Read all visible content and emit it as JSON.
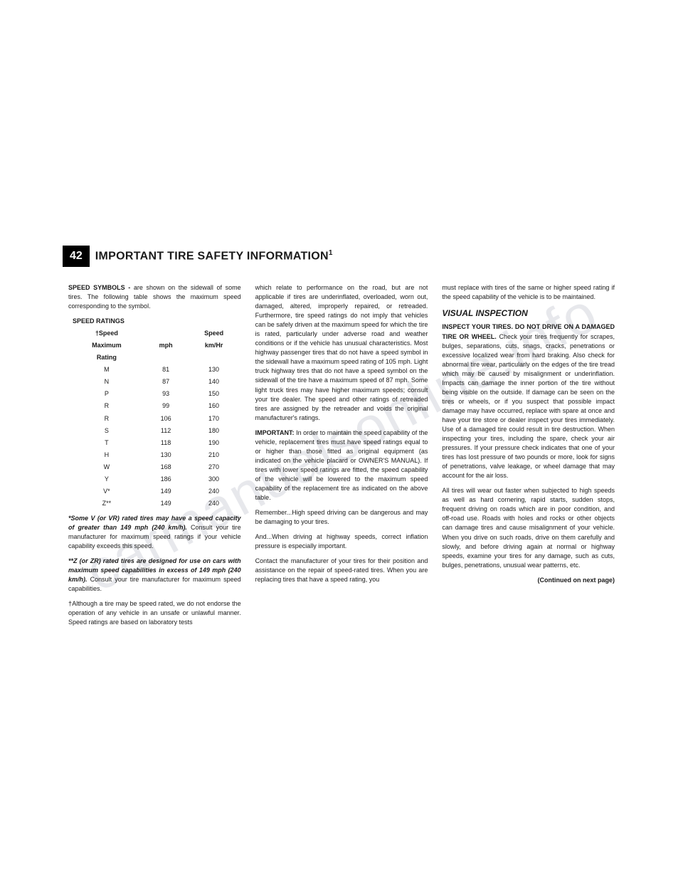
{
  "watermark": "carmanualsonline.info",
  "page_number": "42",
  "header_title": "IMPORTANT TIRE SAFETY INFORMATION",
  "header_sup": "1",
  "col1": {
    "p1_bold": "SPEED SYMBOLS - ",
    "p1_rest": "are shown on the sidewall of some tires. The following table shows the maximum speed corresponding to the symbol.",
    "table_title": "SPEED RATINGS",
    "table": {
      "headers": {
        "c1a": "†Speed",
        "c1b": "Maximum",
        "c1c": "Rating",
        "c2": "mph",
        "c3_top": "Speed",
        "c3": "km/Hr"
      },
      "rows": [
        {
          "r": "M",
          "mph": "81",
          "kmh": "130"
        },
        {
          "r": "N",
          "mph": "87",
          "kmh": "140"
        },
        {
          "r": "P",
          "mph": "93",
          "kmh": "150"
        },
        {
          "r": "R",
          "mph": "99",
          "kmh": "160"
        },
        {
          "r": "R",
          "mph": "106",
          "kmh": "170"
        },
        {
          "r": "S",
          "mph": "112",
          "kmh": "180"
        },
        {
          "r": "T",
          "mph": "118",
          "kmh": "190"
        },
        {
          "r": "H",
          "mph": "130",
          "kmh": "210"
        },
        {
          "r": "W",
          "mph": "168",
          "kmh": "270"
        },
        {
          "r": "Y",
          "mph": "186",
          "kmh": "300"
        },
        {
          "r": "V*",
          "mph": "149",
          "kmh": "240"
        },
        {
          "r": "Z**",
          "mph": "149",
          "kmh": "240"
        }
      ]
    },
    "note1_bold": "*Some V (or VR) rated tires may have a speed capacity of greater than 149 mph (240 km/h).",
    "note1_rest": " Consult your tire manufacturer for maximum speed ratings if your vehicle capability exceeds this speed.",
    "note2_bold": "**Z (or ZR) rated tires are designed for use on cars with maximum speed capabilities in excess of 149 mph (240 km/h).",
    "note2_rest": " Consult your tire manufacturer for maximum speed capabilities.",
    "note3": "†Although a tire may be speed rated, we do not endorse the operation of any vehicle in an unsafe or unlawful manner. Speed ratings are based on laboratory tests"
  },
  "col2": {
    "p1": "which relate to performance on the road, but are not applicable if tires are underinflated, overloaded, worn out, damaged, altered, improperly repaired, or retreaded. Furthermore, tire speed ratings do not imply that vehicles can be safely driven at the maximum speed for which the tire is rated, particularly under adverse road and weather conditions or if the vehicle has unusual characteristics. Most highway passenger tires that do not have a speed symbol in the sidewall have a maximum speed rating of 105 mph. Light truck highway tires that do not have a speed symbol on the sidewall of the tire have a maximum speed of 87 mph. Some light truck tires may have higher maximum speeds; consult your tire dealer. The speed and other ratings of retreaded tires are assigned by the retreader and voids the original manufacturer's ratings.",
    "p2_bold": "IMPORTANT: ",
    "p2_rest": "In order to maintain the speed capability of the vehicle, replacement tires must have speed ratings equal to or higher than those fitted as original equipment (as indicated on the vehicle placard or OWNER'S MANUAL). If tires with lower speed ratings are fitted, the speed capability of the vehicle will be lowered to the maximum speed capability of the replacement tire as indicated on the above table.",
    "p3": "Remember...High speed driving can be dangerous and may be damaging to your tires.",
    "p4": "And...When driving at highway speeds, correct inflation pressure is especially important.",
    "p5": "Contact the manufacturer of your tires for their position and assistance on the repair of speed-rated tires. When you are replacing tires that have a speed rating, you"
  },
  "col3": {
    "p1": "must replace with tires of the same or higher speed rating if the speed capability of the vehicle is to be maintained.",
    "section_title": "VISUAL INSPECTION",
    "p2_bold": "INSPECT YOUR TIRES. DO NOT DRIVE ON A DAMAGED TIRE OR WHEEL.",
    "p2_rest": " Check your tires frequently for scrapes, bulges, separations, cuts, snags, cracks, penetrations or excessive localized wear from hard braking. Also check for abnormal tire wear, particularly on the edges of the tire tread which may be caused by misalignment or underinflation. Impacts can damage the inner portion of the tire without being visible on the outside. If damage can be seen on the tires or wheels, or if you suspect that possible impact damage may have occurred, replace with spare at once and have your tire store or dealer inspect your tires immediately. Use of a damaged tire could result in tire destruction. When inspecting your tires, including the spare, check your air pressures. If your pressure check indicates that one of your tires has lost pressure of two pounds or more, look for signs of penetrations, valve leakage, or wheel damage that may account for the air loss.",
    "p3": "All tires will wear out faster when subjected to high speeds as well as hard cornering, rapid starts, sudden stops, frequent driving on roads which are in poor condition, and off-road use. Roads with holes and rocks or other objects can damage tires and cause misalignment of your vehicle. When you drive on such roads, drive on them carefully and slowly, and before driving again at normal or highway speeds, examine your tires for any damage, such as cuts, bulges, penetrations, unusual wear patterns, etc.",
    "continued": "(Continued on next page)"
  }
}
